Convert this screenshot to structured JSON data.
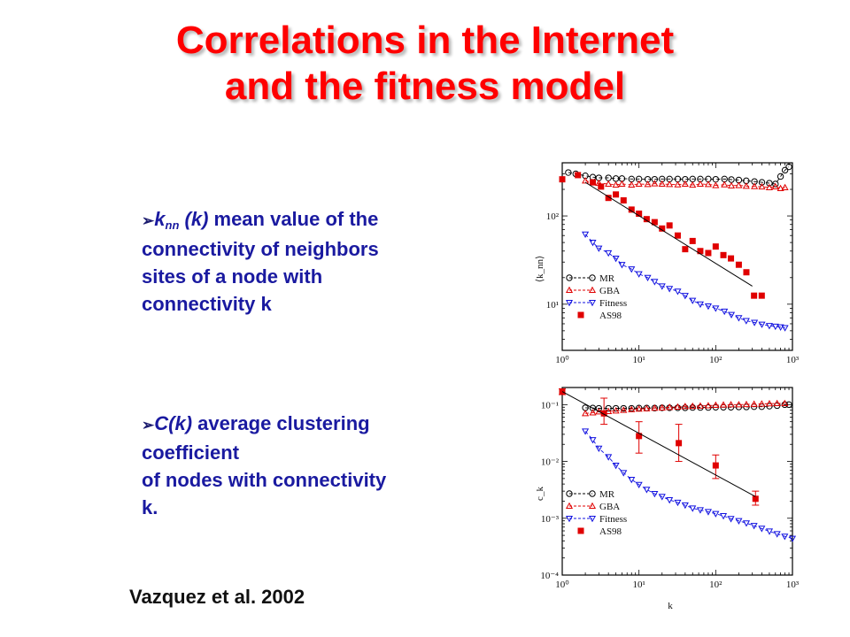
{
  "title": {
    "line1": "Correlations in the Internet",
    "line2": "and the fitness model"
  },
  "bullets": [
    {
      "symbol": "k",
      "subscript": "nn",
      "arg": " (k)",
      "text": " mean value of the",
      "rest": [
        "connectivity of neighbors",
        "sites of a node with",
        "connectivity k"
      ]
    },
    {
      "symbol": "C(k)",
      "text": " average clustering",
      "rest": [
        "coefficient",
        "of  nodes with connectivity",
        "k."
      ]
    }
  ],
  "citation": "Vazquez et al. 2002",
  "colors": {
    "title": "#ff0000",
    "bullet_text": "#1a1aa0",
    "mr": "#000000",
    "gba": "#e00000",
    "fitness": "#1010e0",
    "as98": "#e00000"
  },
  "chart_data": [
    {
      "type": "scatter",
      "ylabel": "⟨k_nn⟩",
      "x_scale": "log",
      "y_scale": "log",
      "xlim": [
        1,
        1000
      ],
      "ylim": [
        3,
        400
      ],
      "x_tick_labels": [
        "10⁰",
        "10¹",
        "10²",
        "10³"
      ],
      "y_tick_labels": [
        "10²",
        "10¹"
      ],
      "legend": [
        "MR",
        "GBA",
        "Fitness",
        "AS98"
      ],
      "legend_position": "bottom-left",
      "series": [
        {
          "name": "MR",
          "marker": "circle-open",
          "line": "dashed",
          "x": [
            1.2,
            1.5,
            2,
            2.5,
            3,
            4,
            5,
            6,
            8,
            10,
            13,
            16,
            20,
            25,
            32,
            40,
            50,
            63,
            80,
            100,
            130,
            160,
            200,
            250,
            320,
            400,
            500,
            600,
            700,
            800,
            900
          ],
          "y": [
            310,
            300,
            285,
            275,
            270,
            270,
            265,
            265,
            262,
            262,
            260,
            260,
            262,
            262,
            262,
            260,
            262,
            262,
            262,
            260,
            262,
            258,
            255,
            250,
            245,
            240,
            235,
            230,
            280,
            330,
            360
          ]
        },
        {
          "name": "GBA",
          "marker": "triangle-up-open",
          "line": "dashed",
          "x": [
            2,
            2.5,
            3,
            4,
            5,
            6,
            8,
            10,
            13,
            16,
            20,
            25,
            32,
            40,
            50,
            63,
            80,
            100,
            130,
            160,
            200,
            250,
            320,
            400,
            500,
            600,
            700,
            800
          ],
          "y": [
            250,
            240,
            235,
            230,
            225,
            230,
            225,
            230,
            228,
            232,
            230,
            228,
            226,
            230,
            224,
            230,
            228,
            222,
            226,
            220,
            222,
            218,
            216,
            214,
            210,
            215,
            205,
            210
          ]
        },
        {
          "name": "Fitness",
          "marker": "triangle-down-open",
          "line": "dashed",
          "x": [
            2,
            2.5,
            3,
            4,
            5,
            6,
            8,
            10,
            13,
            16,
            20,
            25,
            32,
            40,
            50,
            63,
            80,
            100,
            130,
            160,
            200,
            250,
            320,
            400,
            500,
            600,
            700,
            800
          ],
          "y": [
            62,
            50,
            43,
            38,
            33,
            28,
            25,
            22,
            20,
            18,
            16,
            15,
            14,
            12.5,
            11,
            10,
            9.5,
            9,
            8.3,
            7.6,
            7,
            6.5,
            6.2,
            5.9,
            5.7,
            5.6,
            5.5,
            5.4
          ]
        },
        {
          "name": "AS98",
          "marker": "square-filled",
          "x": [
            1,
            1.6,
            2.5,
            3.2,
            4,
            5,
            6.3,
            8,
            10,
            12.6,
            16,
            20,
            25,
            32,
            40,
            50,
            63,
            80,
            100,
            126,
            158,
            200,
            251,
            316,
            398
          ],
          "y": [
            260,
            290,
            240,
            215,
            160,
            175,
            150,
            118,
            106,
            92,
            85,
            72,
            78,
            60,
            42,
            52,
            40,
            38,
            45,
            36,
            33,
            28,
            23,
            12.5,
            12.5
          ]
        },
        {
          "name": "",
          "line": "solid",
          "x": [
            2,
            300
          ],
          "y": [
            240,
            16
          ]
        }
      ]
    },
    {
      "type": "scatter",
      "xlabel": "k",
      "ylabel": "c_k",
      "x_scale": "log",
      "y_scale": "log",
      "xlim": [
        1,
        1000
      ],
      "ylim": [
        0.0001,
        0.2
      ],
      "x_tick_labels": [
        "10⁰",
        "10¹",
        "10²",
        "10³"
      ],
      "y_tick_labels": [
        "10⁻¹",
        "10⁻²",
        "10⁻³",
        "10⁻⁴"
      ],
      "legend": [
        "MR",
        "GBA",
        "Fitness",
        "AS98"
      ],
      "legend_position": "bottom-left",
      "series": [
        {
          "name": "MR",
          "marker": "circle-open",
          "line": "dashed",
          "x": [
            2,
            2.5,
            3,
            4,
            5,
            6.3,
            8,
            10,
            12.6,
            16,
            20,
            25,
            32,
            40,
            50,
            63,
            80,
            100,
            126,
            158,
            200,
            251,
            316,
            398,
            501,
            631,
            794,
            900
          ],
          "y": [
            0.088,
            0.087,
            0.086,
            0.086,
            0.086,
            0.086,
            0.086,
            0.087,
            0.087,
            0.087,
            0.088,
            0.088,
            0.088,
            0.088,
            0.089,
            0.089,
            0.089,
            0.09,
            0.09,
            0.09,
            0.091,
            0.091,
            0.092,
            0.092,
            0.094,
            0.096,
            0.1,
            0.1
          ]
        },
        {
          "name": "GBA",
          "marker": "triangle-up-open",
          "line": "dashed",
          "x": [
            2,
            2.5,
            3,
            4,
            5,
            6.3,
            8,
            10,
            12.6,
            16,
            20,
            25,
            32,
            40,
            50,
            63,
            80,
            100,
            126,
            158,
            200,
            251,
            316,
            398,
            501,
            631,
            794
          ],
          "y": [
            0.07,
            0.072,
            0.075,
            0.076,
            0.078,
            0.08,
            0.082,
            0.084,
            0.085,
            0.087,
            0.088,
            0.09,
            0.091,
            0.093,
            0.094,
            0.095,
            0.096,
            0.098,
            0.099,
            0.1,
            0.1,
            0.101,
            0.102,
            0.103,
            0.104,
            0.105,
            0.105
          ]
        },
        {
          "name": "Fitness",
          "marker": "triangle-down-open",
          "line": "dashed",
          "x": [
            2,
            2.5,
            3,
            4,
            5,
            6.3,
            8,
            10,
            12.6,
            16,
            20,
            25,
            32,
            40,
            50,
            63,
            80,
            100,
            126,
            158,
            200,
            251,
            316,
            398,
            501,
            631,
            794,
            1000
          ],
          "y": [
            0.034,
            0.024,
            0.017,
            0.012,
            0.0085,
            0.0063,
            0.0048,
            0.0039,
            0.0032,
            0.0027,
            0.0024,
            0.0021,
            0.0019,
            0.0017,
            0.0015,
            0.0014,
            0.0013,
            0.0012,
            0.0011,
            0.00098,
            0.0009,
            0.00082,
            0.00074,
            0.00066,
            0.00059,
            0.00053,
            0.00048,
            0.00044
          ]
        },
        {
          "name": "AS98",
          "marker": "square-filled",
          "error_bars": true,
          "x": [
            1,
            3.5,
            10,
            33,
            100,
            330
          ],
          "y": [
            0.17,
            0.07,
            0.028,
            0.021,
            0.0085,
            0.0022
          ],
          "y_low": [
            0.15,
            0.045,
            0.014,
            0.01,
            0.005,
            0.0017
          ],
          "y_high": [
            0.19,
            0.13,
            0.05,
            0.045,
            0.013,
            0.003
          ]
        },
        {
          "name": "",
          "line": "solid",
          "x": [
            1,
            330
          ],
          "y": [
            0.17,
            0.0024
          ]
        }
      ]
    }
  ]
}
